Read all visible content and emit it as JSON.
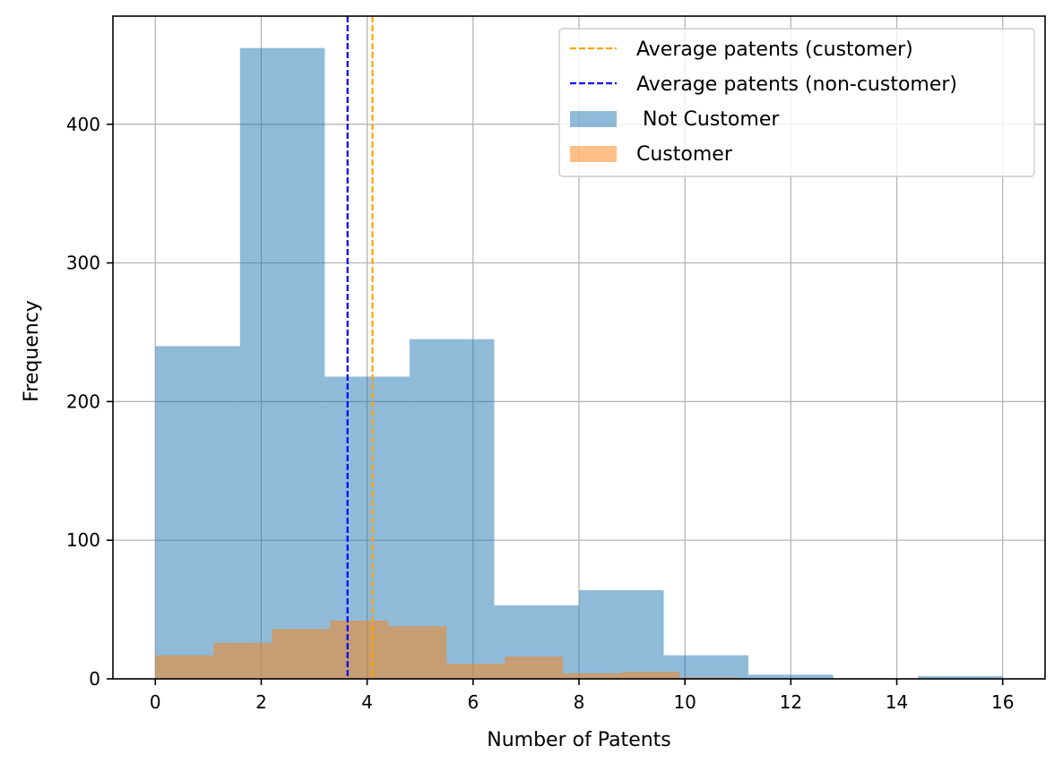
{
  "chart_data": {
    "type": "bar",
    "title": "",
    "xlabel": "Number of Patents",
    "ylabel": "Frequency",
    "xlim": [
      -0.8,
      16.8
    ],
    "ylim": [
      0,
      478
    ],
    "xticks": [
      0,
      2,
      4,
      6,
      8,
      10,
      12,
      14,
      16
    ],
    "yticks": [
      0,
      100,
      200,
      300,
      400
    ],
    "grid": true,
    "legend_position": "upper right",
    "series": [
      {
        "name": " Not Customer",
        "color": "#1f77b4",
        "opacity": 0.5,
        "bin_edges": [
          0,
          1.6,
          3.2,
          4.8,
          6.4,
          8.0,
          9.6,
          11.2,
          12.8,
          14.4,
          16.0
        ],
        "counts": [
          240,
          455,
          218,
          245,
          53,
          64,
          17,
          3,
          0,
          2
        ]
      },
      {
        "name": "Customer",
        "color": "#ff7f0e",
        "opacity": 0.5,
        "bin_edges": [
          0,
          1.1,
          2.2,
          3.3,
          4.4,
          5.5,
          6.6,
          7.7,
          8.8,
          9.9,
          11.0
        ],
        "counts": [
          17,
          26,
          36,
          42,
          38,
          11,
          16,
          4,
          5,
          1
        ]
      }
    ],
    "reference_lines": [
      {
        "name": "Average patents (customer)",
        "x": 4.1,
        "color": "#ffa500",
        "style": "dashed"
      },
      {
        "name": "Average patents (non-customer)",
        "x": 3.63,
        "color": "#0000ff",
        "style": "dashed"
      }
    ],
    "legend": [
      {
        "label": "Average patents (customer)",
        "kind": "line",
        "color": "#ffa500"
      },
      {
        "label": "Average patents (non-customer)",
        "kind": "line",
        "color": "#0000ff"
      },
      {
        "label": " Not Customer",
        "kind": "patch",
        "color": "#1f77b4"
      },
      {
        "label": "Customer",
        "kind": "patch",
        "color": "#ff7f0e"
      }
    ]
  }
}
